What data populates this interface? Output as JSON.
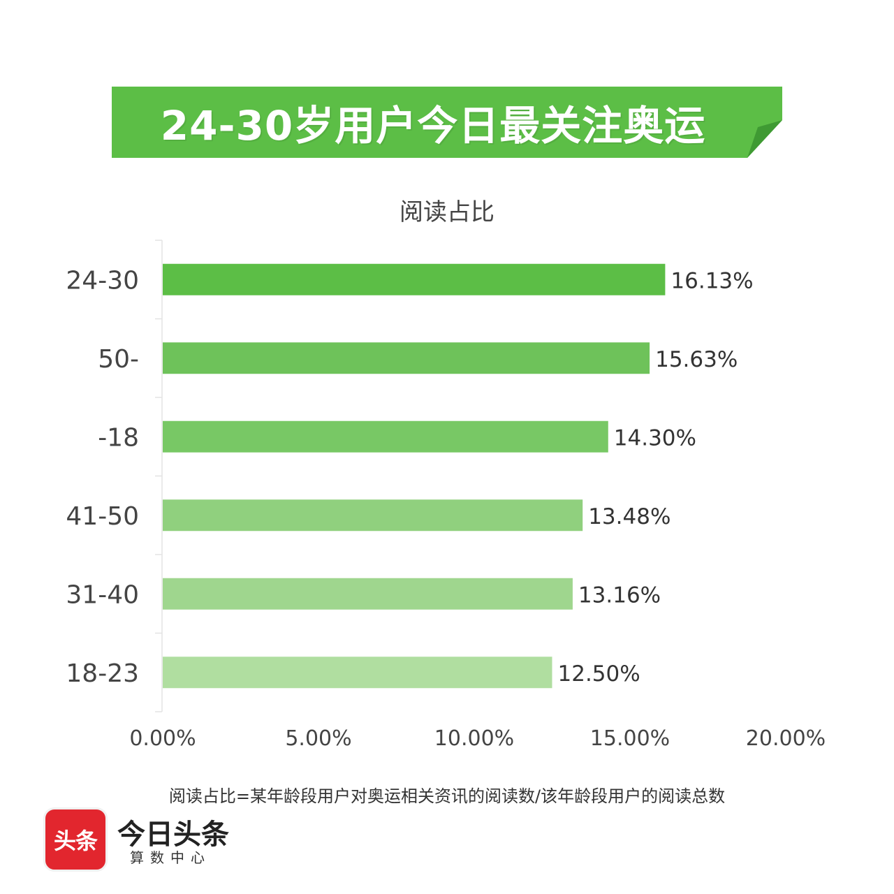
{
  "banner": {
    "title": "24-30岁用户今日最关注奥运",
    "color": "#5cbe46"
  },
  "chart_data": {
    "type": "bar",
    "orientation": "horizontal",
    "title": "阅读占比",
    "categories": [
      "24-30",
      "50-",
      "-18",
      "41-50",
      "31-40",
      "18-23"
    ],
    "values": [
      16.13,
      15.63,
      14.3,
      13.48,
      13.16,
      12.5
    ],
    "value_labels": [
      "16.13%",
      "15.63%",
      "14.30%",
      "13.48%",
      "13.16%",
      "12.50%"
    ],
    "xlim": [
      0,
      20
    ],
    "xticks": [
      "0.00%",
      "5.00%",
      "10.00%",
      "15.00%",
      "20.00%"
    ],
    "xlabel": "",
    "ylabel": "",
    "grid": false,
    "colors": [
      "#5cbe46",
      "#6ec25a",
      "#78c865",
      "#90d07e",
      "#9fd68e",
      "#b0dea0"
    ]
  },
  "footnote": "阅读占比=某年龄段用户对奥运相关资讯的阅读数/该年龄段用户的阅读总数",
  "brand": {
    "logo_text": "头条",
    "name": "今日头条",
    "sub": "算数中心"
  }
}
